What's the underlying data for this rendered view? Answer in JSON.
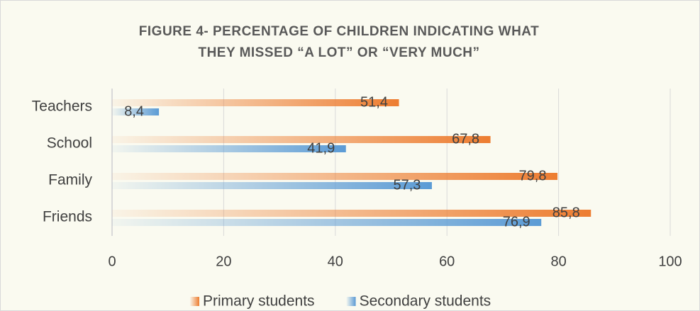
{
  "chart_data": {
    "type": "hbar",
    "title": [
      "FIGURE 4- PERCENTAGE OF CHILDREN INDICATING WHAT",
      "THEY MISSED “A LOT” OR “VERY MUCH”"
    ],
    "categories": [
      "Teachers",
      "School",
      "Family",
      "Friends"
    ],
    "series": [
      {
        "name": "Primary students",
        "color": "#ed7d31",
        "values": [
          51.4,
          67.8,
          79.8,
          85.8
        ],
        "value_labels": [
          "51,4",
          "67,8",
          "79,8",
          "85,8"
        ]
      },
      {
        "name": "Secondary students",
        "color": "#5b9bd5",
        "values": [
          8.4,
          41.9,
          57.3,
          76.9
        ],
        "value_labels": [
          "8,4",
          "41,9",
          "57,3",
          "76,9"
        ]
      }
    ],
    "xlim": [
      0,
      100
    ],
    "xticks": [
      0,
      20,
      40,
      60,
      80,
      100
    ],
    "grid": true,
    "legend": "bottom"
  }
}
